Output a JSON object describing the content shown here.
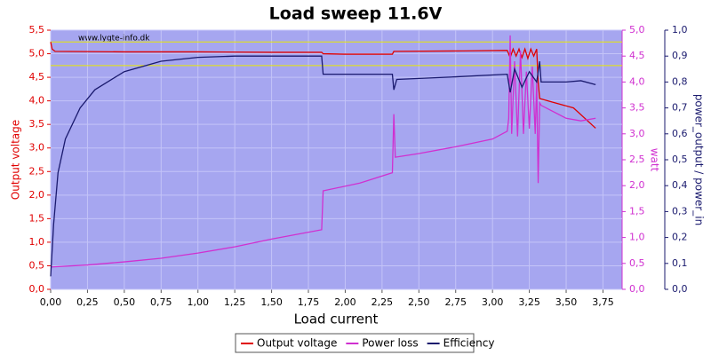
{
  "chart_data": {
    "type": "line",
    "title": "Load sweep 11.6V",
    "watermark": "www.lygte-info.dk",
    "xlabel": "Load current",
    "ylabel": "Output voltage",
    "y2label": "watt",
    "y3label": "power_output / power_in",
    "xlim": [
      0,
      3.88
    ],
    "ylim": [
      0,
      5.5
    ],
    "y2lim": [
      0,
      5
    ],
    "y3lim": [
      0,
      1
    ],
    "xticks": [
      {
        "value": 0,
        "label": "0,00"
      },
      {
        "value": 0.25,
        "label": "0,25"
      },
      {
        "value": 0.5,
        "label": "0,50"
      },
      {
        "value": 0.75,
        "label": "0,75"
      },
      {
        "value": 1,
        "label": "1,00"
      },
      {
        "value": 1.25,
        "label": "1,25"
      },
      {
        "value": 1.5,
        "label": "1,50"
      },
      {
        "value": 1.75,
        "label": "1,75"
      },
      {
        "value": 2,
        "label": "2,00"
      },
      {
        "value": 2.25,
        "label": "2,25"
      },
      {
        "value": 2.5,
        "label": "2,50"
      },
      {
        "value": 2.75,
        "label": "2,75"
      },
      {
        "value": 3,
        "label": "3,00"
      },
      {
        "value": 3.25,
        "label": "3,25"
      },
      {
        "value": 3.5,
        "label": "3,50"
      },
      {
        "value": 3.75,
        "label": "3,75"
      }
    ],
    "yticks": [
      {
        "value": 0,
        "label": "0,0"
      },
      {
        "value": 0.5,
        "label": "0,5"
      },
      {
        "value": 1,
        "label": "1,0"
      },
      {
        "value": 1.5,
        "label": "1,5"
      },
      {
        "value": 2,
        "label": "2,0"
      },
      {
        "value": 2.5,
        "label": "2,5"
      },
      {
        "value": 3,
        "label": "3,0"
      },
      {
        "value": 3.5,
        "label": "3,5"
      },
      {
        "value": 4,
        "label": "4,0"
      },
      {
        "value": 4.5,
        "label": "4,5"
      },
      {
        "value": 5,
        "label": "5,0"
      },
      {
        "value": 5.5,
        "label": "5,5"
      }
    ],
    "y2ticks": [
      {
        "value": 0,
        "label": "0,0"
      },
      {
        "value": 0.5,
        "label": "0,5"
      },
      {
        "value": 1,
        "label": "1,0"
      },
      {
        "value": 1.5,
        "label": "1,5"
      },
      {
        "value": 2,
        "label": "2,0"
      },
      {
        "value": 2.5,
        "label": "2,5"
      },
      {
        "value": 3,
        "label": "3,0"
      },
      {
        "value": 3.5,
        "label": "3,5"
      },
      {
        "value": 4,
        "label": "4,0"
      },
      {
        "value": 4.5,
        "label": "4,5"
      },
      {
        "value": 5,
        "label": "5,0"
      }
    ],
    "y3ticks": [
      {
        "value": 0,
        "label": "0,0"
      },
      {
        "value": 0.1,
        "label": "0,1"
      },
      {
        "value": 0.2,
        "label": "0,2"
      },
      {
        "value": 0.3,
        "label": "0,3"
      },
      {
        "value": 0.4,
        "label": "0,4"
      },
      {
        "value": 0.5,
        "label": "0,5"
      },
      {
        "value": 0.6,
        "label": "0,6"
      },
      {
        "value": 0.7,
        "label": "0,7"
      },
      {
        "value": 0.8,
        "label": "0,8"
      },
      {
        "value": 0.9,
        "label": "0,9"
      },
      {
        "value": 1,
        "label": "1,0"
      }
    ],
    "hlines": [
      4.75,
      5.25
    ],
    "hline_color": "#e8e800",
    "grid": true,
    "legend": "bottom",
    "series": [
      {
        "name": "Output voltage",
        "color": "#e00000",
        "axis": "y",
        "x": [
          0,
          0.01,
          0.03,
          0.5,
          1.0,
          1.5,
          1.84,
          1.85,
          2.0,
          2.32,
          2.33,
          2.8,
          3.1,
          3.12,
          3.14,
          3.16,
          3.18,
          3.2,
          3.22,
          3.24,
          3.26,
          3.28,
          3.3,
          3.31,
          3.32,
          3.4,
          3.55,
          3.7
        ],
        "values": [
          5.25,
          5.1,
          5.05,
          5.04,
          5.04,
          5.03,
          5.03,
          5.0,
          4.99,
          4.99,
          5.05,
          5.06,
          5.07,
          4.92,
          5.1,
          4.95,
          5.1,
          4.92,
          5.1,
          4.9,
          5.1,
          4.95,
          5.1,
          4.4,
          4.05,
          3.98,
          3.85,
          3.42
        ]
      },
      {
        "name": "Power loss",
        "color": "#d030d0",
        "axis": "y2",
        "x": [
          0,
          0.25,
          0.5,
          0.75,
          1.0,
          1.25,
          1.5,
          1.84,
          1.85,
          2.1,
          2.32,
          2.33,
          2.34,
          2.5,
          2.75,
          3.0,
          3.1,
          3.11,
          3.12,
          3.13,
          3.15,
          3.17,
          3.19,
          3.21,
          3.23,
          3.25,
          3.27,
          3.29,
          3.3,
          3.31,
          3.32,
          3.33,
          3.5,
          3.6,
          3.7
        ],
        "values": [
          0.43,
          0.47,
          0.53,
          0.6,
          0.7,
          0.82,
          0.97,
          1.15,
          1.9,
          2.05,
          2.25,
          3.38,
          2.55,
          2.62,
          2.75,
          2.9,
          3.05,
          3.3,
          4.9,
          3.0,
          4.4,
          2.95,
          4.6,
          3.0,
          4.2,
          3.1,
          4.3,
          3.0,
          4.0,
          2.05,
          3.6,
          3.55,
          3.3,
          3.25,
          3.3
        ]
      },
      {
        "name": "Efficiency",
        "color": "#1a1a6e",
        "axis": "y3",
        "x": [
          0,
          0.02,
          0.05,
          0.1,
          0.2,
          0.3,
          0.5,
          0.75,
          1.0,
          1.25,
          1.84,
          1.85,
          2.32,
          2.33,
          2.35,
          2.75,
          3.1,
          3.12,
          3.15,
          3.2,
          3.25,
          3.3,
          3.32,
          3.33,
          3.5,
          3.6,
          3.7
        ],
        "values": [
          0.05,
          0.25,
          0.45,
          0.58,
          0.7,
          0.77,
          0.84,
          0.88,
          0.895,
          0.9,
          0.9,
          0.83,
          0.83,
          0.77,
          0.81,
          0.82,
          0.83,
          0.76,
          0.85,
          0.78,
          0.84,
          0.8,
          0.88,
          0.8,
          0.8,
          0.805,
          0.79
        ]
      }
    ]
  }
}
